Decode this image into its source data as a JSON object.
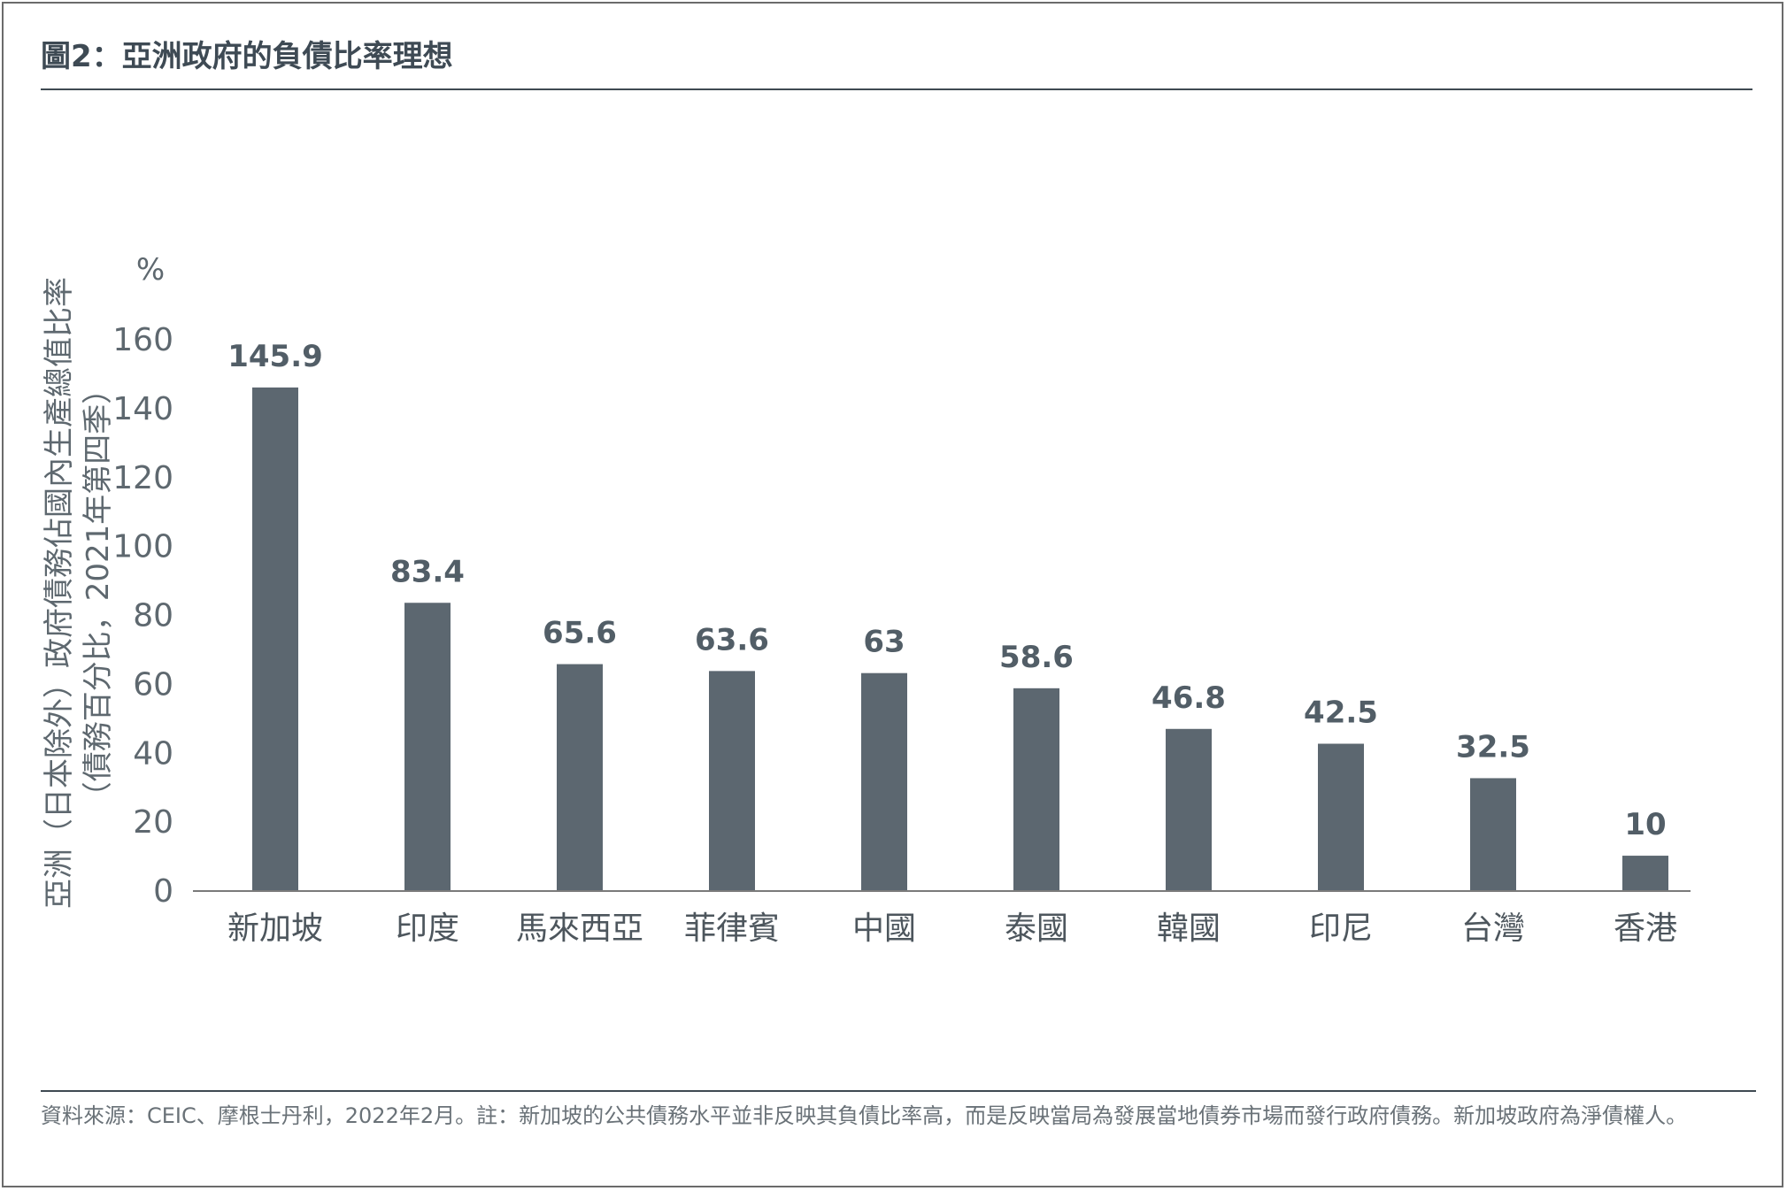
{
  "title": "圖2：亞洲政府的負債比率理想",
  "source_note": "資料來源：CEIC、摩根士丹利，2022年2月。註：新加坡的公共債務水平並非反映其負債比率高，而是反映當局為發展當地債券市場而發行政府債務。新加坡政府為淨債權人。",
  "colors": {
    "bar": "#5c6770",
    "axis": "#7a7a7a",
    "rule": "#3f4a52"
  },
  "chart_data": {
    "type": "bar",
    "categories": [
      "新加坡",
      "印度",
      "馬來西亞",
      "菲律賓",
      "中國",
      "泰國",
      "韓國",
      "印尼",
      "台灣",
      "香港"
    ],
    "values": [
      145.9,
      83.4,
      65.6,
      63.6,
      63,
      58.6,
      46.8,
      42.5,
      32.5,
      10
    ],
    "value_labels": [
      "145.9",
      "83.4",
      "65.6",
      "63.6",
      "63",
      "58.6",
      "46.8",
      "42.5",
      "32.5",
      "10"
    ],
    "yticks": [
      0,
      20,
      40,
      60,
      80,
      100,
      120,
      140,
      160
    ],
    "ylim": [
      0,
      160
    ],
    "yunit": "%",
    "ylabel_lines": [
      "亞洲（日本除外）政府債務佔國內生產總值比率",
      "（債務百分比，2021年第四季）"
    ],
    "grid": false,
    "legend": "none"
  }
}
